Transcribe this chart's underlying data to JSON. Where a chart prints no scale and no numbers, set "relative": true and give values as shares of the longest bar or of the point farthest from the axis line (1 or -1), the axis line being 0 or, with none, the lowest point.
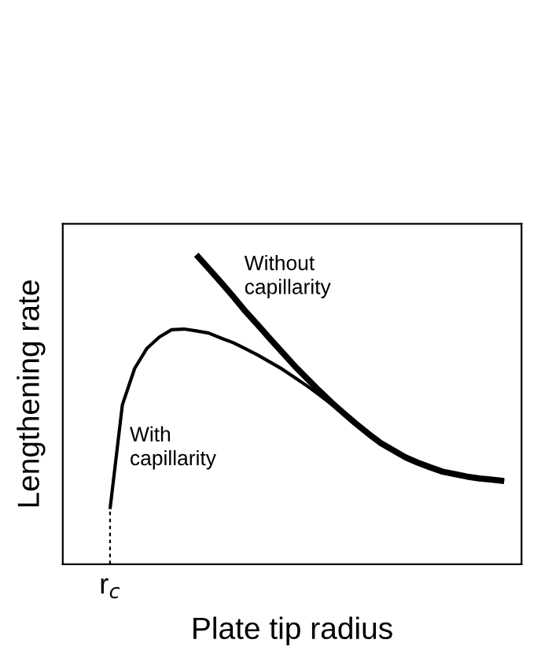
{
  "chart_data": {
    "type": "line",
    "relative": true,
    "xlabel": "Plate tip radius",
    "ylabel": "Lengthening rate",
    "categories": [
      null,
      null,
      null,
      null,
      null,
      null,
      null,
      null,
      null,
      null,
      null,
      null,
      null,
      null,
      null,
      null,
      null,
      null,
      null,
      null,
      null,
      null,
      null,
      null,
      null,
      null,
      null,
      null,
      null,
      null,
      null,
      null,
      null
    ],
    "series": [
      {
        "color": "#000000",
        "values": [
          null,
          null,
          null,
          null,
          null,
          null,
          null,
          1.0,
          0.956,
          0.911,
          0.865,
          0.817,
          0.773,
          0.728,
          0.684,
          0.64,
          0.6,
          0.56,
          0.522,
          0.487,
          0.453,
          0.421,
          0.391,
          0.368,
          0.345,
          0.328,
          0.313,
          0.299,
          0.291,
          0.283,
          0.277,
          0.273,
          0.269
        ]
      },
      {
        "color": "#000000",
        "values": [
          0.178,
          0.515,
          0.633,
          0.698,
          0.734,
          0.758,
          0.76,
          0.754,
          0.747,
          0.731,
          0.716,
          0.696,
          0.676,
          0.653,
          0.63,
          0.603,
          0.576,
          0.547,
          0.516,
          0.484,
          0.451,
          0.419,
          0.391,
          0.368,
          0.345,
          0.328,
          0.313,
          0.299,
          0.291,
          0.283,
          0.277,
          0.273,
          0.269
        ]
      }
    ],
    "annotations": [
      "Without\ncapillarity",
      "With\ncapillarity",
      "r$_{c}$"
    ]
  }
}
